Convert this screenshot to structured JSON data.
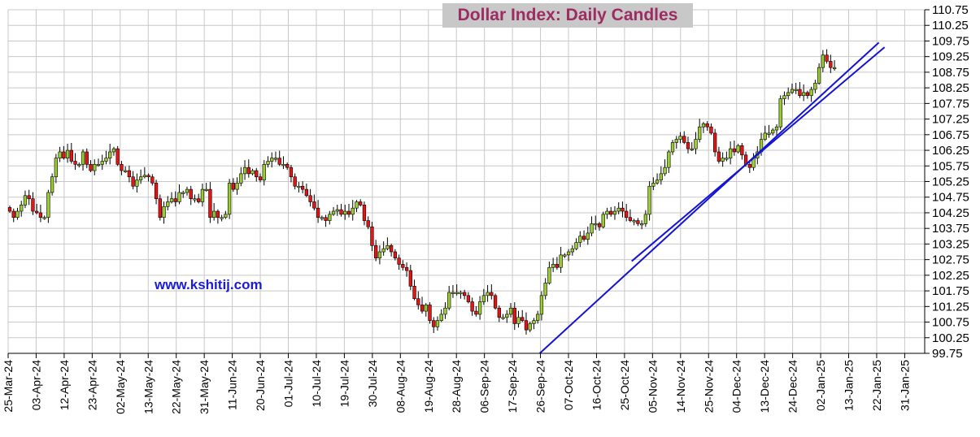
{
  "chart_data": {
    "type": "candlestick",
    "title": "Dollar Index:  Daily Candles",
    "watermark": "www.kshitij.com",
    "ylim": [
      99.75,
      110.75
    ],
    "y_ticks": [
      "110.75",
      "110.25",
      "109.75",
      "109.25",
      "108.75",
      "108.25",
      "107.75",
      "107.25",
      "106.75",
      "106.25",
      "105.75",
      "105.25",
      "104.75",
      "104.25",
      "103.75",
      "103.25",
      "102.75",
      "102.25",
      "101.75",
      "101.25",
      "100.75",
      "100.25",
      "99.75"
    ],
    "x_ticks": [
      "25-Mar-24",
      "03-Apr-24",
      "12-Apr-24",
      "23-Apr-24",
      "02-May-24",
      "13-May-24",
      "22-May-24",
      "31-May-24",
      "11-Jun-24",
      "20-Jun-24",
      "01-Jul-24",
      "10-Jul-24",
      "19-Jul-24",
      "30-Jul-24",
      "08-Aug-24",
      "19-Aug-24",
      "28-Aug-24",
      "06-Sep-24",
      "17-Sep-24",
      "26-Sep-24",
      "07-Oct-24",
      "16-Oct-24",
      "25-Oct-24",
      "05-Nov-24",
      "14-Nov-24",
      "25-Nov-24",
      "04-Dec-24",
      "13-Dec-24",
      "24-Dec-24",
      "02-Jan-25",
      "13-Jan-25",
      "22-Jan-25",
      "31-Jan-25"
    ],
    "up_color": "#9acd32",
    "down_color": "#e81414",
    "trendline_color": "#1414d2",
    "trendlines": [
      {
        "from": {
          "day": "26-Sep-24",
          "value": 99.75
        },
        "to": {
          "day": "22-Jan-25",
          "value": 109.7
        }
      },
      {
        "from": {
          "day": "28-Oct-24",
          "value": 102.7
        },
        "to": {
          "day": "24-Jan-25",
          "value": 109.55
        }
      }
    ],
    "closes": [
      104.3,
      104.1,
      104.3,
      104.5,
      104.8,
      104.7,
      104.3,
      104.25,
      104.1,
      104.1,
      104.9,
      105.4,
      106.0,
      106.2,
      106.0,
      106.25,
      105.9,
      105.8,
      105.8,
      106.2,
      105.8,
      105.6,
      105.8,
      105.8,
      105.9,
      106.0,
      106.2,
      106.3,
      105.8,
      105.6,
      105.6,
      105.4,
      105.1,
      105.3,
      105.4,
      105.45,
      105.4,
      105.2,
      104.7,
      104.1,
      104.45,
      104.6,
      104.7,
      104.6,
      104.9,
      104.9,
      105.0,
      104.7,
      104.7,
      104.6,
      105.0,
      105.0,
      104.1,
      104.3,
      104.1,
      104.1,
      104.2,
      105.2,
      105.0,
      105.2,
      105.5,
      105.7,
      105.5,
      105.6,
      105.4,
      105.3,
      105.8,
      105.9,
      106.0,
      106.0,
      105.8,
      105.8,
      105.7,
      105.4,
      105.1,
      105.1,
      105.0,
      104.8,
      104.6,
      104.4,
      104.1,
      104.1,
      104.0,
      104.2,
      104.3,
      104.35,
      104.2,
      104.3,
      104.2,
      104.4,
      104.6,
      104.5,
      104.0,
      103.8,
      103.2,
      102.8,
      103.0,
      103.1,
      103.2,
      103.0,
      102.8,
      102.6,
      102.5,
      102.4,
      101.9,
      101.5,
      101.3,
      101.1,
      101.3,
      100.8,
      100.6,
      100.8,
      101.0,
      101.2,
      101.7,
      101.7,
      101.7,
      101.7,
      101.6,
      101.4,
      101.1,
      101.0,
      101.4,
      101.6,
      101.7,
      101.6,
      101.2,
      100.9,
      100.9,
      101.0,
      101.2,
      100.7,
      100.9,
      100.8,
      100.5,
      100.7,
      100.8,
      101.0,
      101.6,
      102.0,
      102.5,
      102.6,
      102.5,
      102.9,
      102.9,
      103.0,
      103.1,
      103.3,
      103.5,
      103.4,
      103.6,
      103.9,
      103.9,
      103.8,
      104.2,
      104.3,
      104.2,
      104.3,
      104.4,
      104.3,
      104.1,
      104.0,
      104.0,
      103.9,
      103.9,
      104.2,
      105.1,
      105.2,
      105.3,
      105.5,
      105.7,
      106.2,
      106.5,
      106.6,
      106.7,
      106.5,
      106.3,
      106.3,
      106.6,
      107.0,
      107.1,
      107.0,
      106.8,
      106.2,
      105.9,
      106.0,
      106.0,
      106.3,
      106.2,
      106.4,
      106.1,
      105.8,
      105.7,
      106.0,
      106.2,
      106.6,
      106.8,
      106.8,
      106.9,
      107.0,
      107.9,
      108.0,
      108.1,
      108.2,
      108.2,
      108.0,
      108.1,
      108.0,
      108.2,
      108.4,
      108.9,
      109.3,
      109.1,
      108.9,
      108.9
    ]
  }
}
